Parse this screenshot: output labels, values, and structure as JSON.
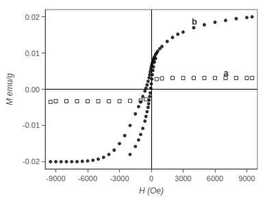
{
  "chart_data": {
    "type": "scatter",
    "xlabel": "H (Oe)",
    "ylabel": "M emu/g",
    "xlim": [
      -10000,
      10000
    ],
    "ylim": [
      -0.022,
      0.022
    ],
    "xticks": [
      -9000,
      -6000,
      -3000,
      0,
      3000,
      6000,
      9000
    ],
    "yticks": [
      -0.02,
      -0.01,
      {
        "value": 0,
        "label": "0.00"
      },
      0.01,
      0.02
    ],
    "grid": false,
    "annotations": [
      {
        "text": "a",
        "x": 6800,
        "y": 0.0033
      },
      {
        "text": "b",
        "x": 3800,
        "y": 0.0175
      }
    ],
    "series": [
      {
        "color": "#000000",
        "marker": "open_square",
        "x": [
          -9500,
          -9000,
          -8000,
          -7000,
          -6000,
          -5000,
          -4000,
          -3000,
          -2000,
          -1000,
          -500,
          500,
          1000,
          2000,
          3000,
          4000,
          5000,
          6000,
          7000,
          8000,
          9000,
          9500
        ],
        "values": [
          -0.0035,
          -0.0033,
          -0.0033,
          -0.0033,
          -0.0033,
          -0.0033,
          -0.0033,
          -0.0033,
          -0.0032,
          -0.0031,
          -0.0028,
          0.0028,
          0.003,
          0.0031,
          0.0031,
          0.0031,
          0.0031,
          0.0031,
          0.0031,
          0.0031,
          0.0031,
          0.0031
        ]
      },
      {
        "color": "#000000",
        "marker": "circle",
        "x": [
          -9500,
          -9000,
          -8500,
          -8000,
          -7500,
          -7000,
          -6500,
          -6000,
          -5500,
          -5000,
          -4500,
          -4000,
          -3500,
          -3000,
          -2500,
          -2000,
          -1500,
          -1200,
          -1000,
          -800,
          -600,
          -500,
          -400,
          -300,
          -200,
          -150,
          -100,
          -50,
          0,
          50,
          100,
          150,
          200,
          250,
          300,
          400,
          500,
          600,
          800,
          1000,
          1500,
          2000,
          2500,
          3000,
          4000,
          5000,
          6000,
          7000,
          8000,
          9000,
          9500
        ],
        "values": [
          -0.02,
          -0.02,
          -0.02,
          -0.02,
          -0.02,
          -0.02,
          -0.0199,
          -0.0198,
          -0.0196,
          -0.0193,
          -0.0188,
          -0.018,
          -0.0168,
          -0.015,
          -0.0128,
          -0.01,
          -0.0068,
          -0.0048,
          -0.0035,
          -0.002,
          -0.0005,
          0.0003,
          0.0012,
          0.0022,
          0.0032,
          0.004,
          0.0048,
          0.0055,
          0.0062,
          0.0068,
          0.0073,
          0.0078,
          0.0082,
          0.0086,
          0.009,
          0.0096,
          0.01,
          0.0105,
          0.0112,
          0.0118,
          0.0132,
          0.0143,
          0.0152,
          0.0158,
          0.017,
          0.0178,
          0.0185,
          0.019,
          0.0195,
          0.0198,
          0.02
        ]
      },
      {
        "color": "#000000",
        "marker": "circle",
        "x": [
          400,
          300,
          200,
          150,
          100,
          50,
          0,
          -50,
          -100,
          -150,
          -200,
          -250,
          -300,
          -400,
          -500,
          -600,
          -800,
          -1000,
          -1200,
          -1500,
          -2000
        ],
        "values": [
          0.0085,
          0.0075,
          0.0062,
          0.0052,
          0.004,
          0.0028,
          0.0015,
          0.0003,
          -0.001,
          -0.002,
          -0.003,
          -0.004,
          -0.005,
          -0.0062,
          -0.0075,
          -0.0088,
          -0.0108,
          -0.0125,
          -0.014,
          -0.0158,
          -0.018
        ]
      }
    ]
  }
}
